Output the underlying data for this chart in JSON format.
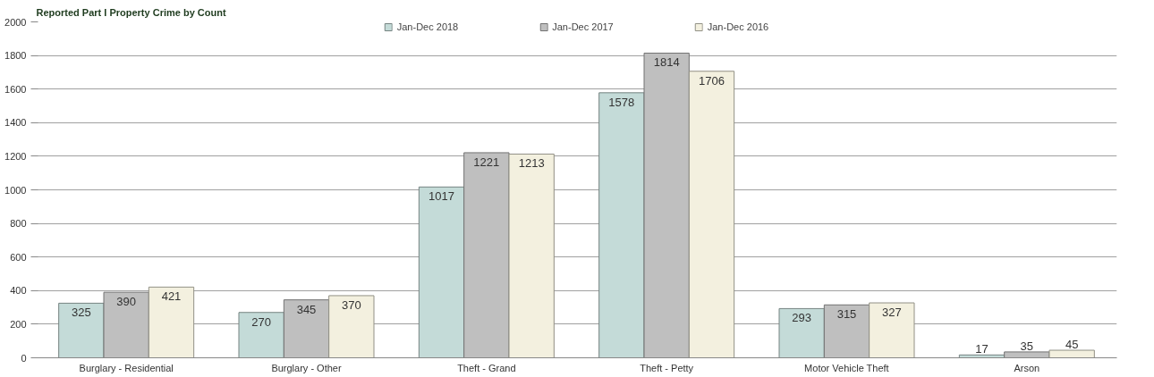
{
  "chart_data": {
    "type": "bar",
    "title": "Reported Part I Property Crime by Count",
    "categories": [
      "Burglary - Residential",
      "Burglary - Other",
      "Theft - Grand",
      "Theft - Petty",
      "Motor Vehicle Theft",
      "Arson"
    ],
    "series": [
      {
        "name": "Jan-Dec 2018",
        "color": "#c4dbd8",
        "values": [
          325,
          270,
          1017,
          1578,
          293,
          17
        ]
      },
      {
        "name": "Jan-Dec 2017",
        "color": "#bfbfbf",
        "values": [
          390,
          345,
          1221,
          1814,
          315,
          35
        ]
      },
      {
        "name": "Jan-Dec 2016",
        "color": "#f3f0df",
        "values": [
          421,
          370,
          1213,
          1706,
          327,
          45
        ]
      }
    ],
    "ylim": [
      0,
      2000
    ],
    "yticks": [
      0,
      200,
      400,
      600,
      800,
      1000,
      1200,
      1400,
      1600,
      1800,
      2000
    ],
    "grid": "y",
    "legend": "top",
    "data_labels": true
  }
}
